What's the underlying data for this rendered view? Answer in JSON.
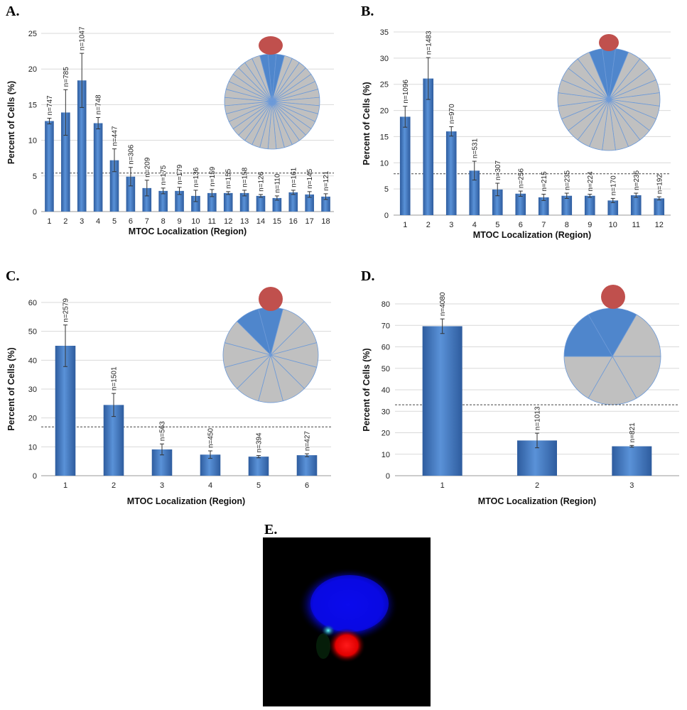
{
  "chart_data": [
    {
      "type": "bar",
      "panel": "A.",
      "xlabel": "MTOC Localization (Region)",
      "ylabel": "Percent of Cells (%)",
      "ylim": [
        0,
        25
      ],
      "yticks": [
        0,
        5,
        10,
        15,
        20,
        25
      ],
      "categories": [
        "1",
        "2",
        "3",
        "4",
        "5",
        "6",
        "7",
        "8",
        "9",
        "10",
        "11",
        "12",
        "13",
        "14",
        "15",
        "16",
        "17",
        "18"
      ],
      "values": [
        12.7,
        13.9,
        18.4,
        12.4,
        7.2,
        4.9,
        3.3,
        2.9,
        2.9,
        2.2,
        2.6,
        2.6,
        2.6,
        2.2,
        1.9,
        2.7,
        2.4,
        2.1
      ],
      "errors": [
        0.4,
        3.2,
        3.8,
        0.8,
        1.6,
        1.3,
        1.1,
        0.4,
        0.5,
        0.8,
        0.5,
        0.2,
        0.4,
        0.2,
        0.3,
        0.3,
        0.4,
        0.4
      ],
      "n_labels": [
        "n=747",
        "n=785",
        "n=1047",
        "n=748",
        "n=447",
        "n=306",
        "n=209",
        "n=175",
        "n=179",
        "n=136",
        "n=159",
        "n=155",
        "n=158",
        "n=126",
        "n=110",
        "n=161",
        "n=145",
        "n=121"
      ],
      "reference_line": 5.4,
      "inset": {
        "segments": 36,
        "highlighted": [
          0,
          1,
          35
        ],
        "dot_color": "#c0504d"
      }
    },
    {
      "type": "bar",
      "panel": "B.",
      "xlabel": "MTOC Localization (Region)",
      "ylabel": "Percent of Cells (%)",
      "ylim": [
        0,
        35
      ],
      "yticks": [
        0,
        5,
        10,
        15,
        20,
        25,
        30,
        35
      ],
      "categories": [
        "1",
        "2",
        "3",
        "4",
        "5",
        "6",
        "7",
        "8",
        "9",
        "10",
        "11",
        "12"
      ],
      "values": [
        18.8,
        26.1,
        16.0,
        8.5,
        4.9,
        4.1,
        3.4,
        3.7,
        3.7,
        2.8,
        3.8,
        3.2
      ],
      "errors": [
        2.0,
        4.0,
        0.9,
        1.8,
        1.2,
        0.5,
        0.6,
        0.5,
        0.3,
        0.4,
        0.4,
        0.3
      ],
      "n_labels": [
        "n=1096",
        "n=1483",
        "n=970",
        "n=531",
        "n=307",
        "n=256",
        "n=215",
        "n=235",
        "n=224",
        "n=170",
        "n=235",
        "n=192"
      ],
      "reference_line": 7.9,
      "inset": {
        "segments": 24,
        "highlighted": [
          0,
          1,
          23
        ],
        "dot_color": "#c0504d"
      }
    },
    {
      "type": "bar",
      "panel": "C.",
      "xlabel": "MTOC Localization (Region)",
      "ylabel": "Percent of Cells (%)",
      "ylim": [
        0,
        60
      ],
      "yticks": [
        0,
        10,
        20,
        30,
        40,
        50,
        60
      ],
      "categories": [
        "1",
        "2",
        "3",
        "4",
        "5",
        "6"
      ],
      "values": [
        45.0,
        24.5,
        9.1,
        7.3,
        6.6,
        7.1
      ],
      "errors": [
        7.2,
        4.0,
        1.9,
        1.3,
        0.4,
        0.5
      ],
      "n_labels": [
        "n=2579",
        "n=1501",
        "n=563",
        "n=450",
        "n=394",
        "n=427"
      ],
      "reference_line": 16.9,
      "inset": {
        "segments": 12,
        "highlighted": [
          0,
          11
        ],
        "dot_color": "#c0504d"
      }
    },
    {
      "type": "bar",
      "panel": "D.",
      "xlabel": "MTOC Localization (Region)",
      "ylabel": "Percent of Cells (%)",
      "ylim": [
        0,
        80
      ],
      "yticks": [
        0,
        10,
        20,
        30,
        40,
        50,
        60,
        70,
        80
      ],
      "categories": [
        "1",
        "2",
        "3"
      ],
      "values": [
        69.6,
        16.4,
        13.7
      ],
      "errors": [
        3.4,
        3.4,
        0.4
      ],
      "n_labels": [
        "n=4080",
        "n=1013",
        "n=821"
      ],
      "reference_line": 33.0,
      "inset": {
        "segments": 6,
        "highlighted": [
          0,
          5
        ],
        "dot_color": "#c0504d"
      }
    }
  ],
  "panel_e": {
    "label": "E."
  },
  "colors": {
    "bar": "#4a7fc6",
    "bar_dark": "#2d5a9c",
    "slice_gray": "#c0c0c0",
    "slice_blue": "#4f86cc",
    "slice_line": "#6d9ad8",
    "dot": "#c0504d"
  }
}
